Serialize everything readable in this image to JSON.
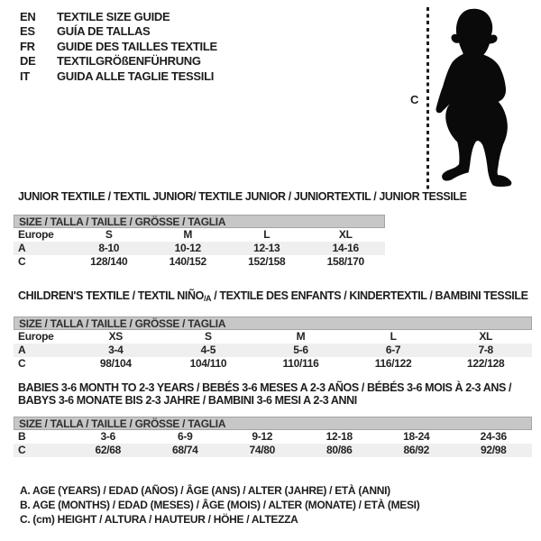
{
  "colors": {
    "page_bg": "#ffffff",
    "text": "#1d1d1d",
    "bar_bg": "#c7c7c7",
    "bar_border": "#a5a5a5",
    "shaded_row": "#efefef",
    "silhouette": "#0a0a0a"
  },
  "header": {
    "entries": [
      {
        "code": "EN",
        "text": "TEXTILE SIZE GUIDE"
      },
      {
        "code": "ES",
        "text": "GUÍA DE TALLAS"
      },
      {
        "code": "FR",
        "text": "GUIDE DES TAILLES TEXTILE"
      },
      {
        "code": "DE",
        "text": "TEXTILGRÖßENFÜHRUNG"
      },
      {
        "code": "IT",
        "text": "GUIDA ALLE TAGLIE TESSILI"
      }
    ]
  },
  "figure": {
    "label": "C",
    "icon": "baby-silhouette"
  },
  "sections": [
    {
      "title": "JUNIOR TEXTILE / TEXTIL JUNIOR/ TEXTILE JUNIOR / JUNIORTEXTIL / JUNIOR TESSILE",
      "size_header": "SIZE / TALLA / TAILLE / GRÖSSE / TAGLIA",
      "rows": [
        {
          "label": "Europe",
          "values": [
            "S",
            "M",
            "L",
            "XL"
          ],
          "shaded": false
        },
        {
          "label": "A",
          "values": [
            "8-10",
            "10-12",
            "12-13",
            "14-16"
          ],
          "shaded": true
        },
        {
          "label": "C",
          "values": [
            "128/140",
            "140/152",
            "152/158",
            "158/170"
          ],
          "shaded": false
        }
      ]
    },
    {
      "title_pre": "CHILDREN'S TEXTILE / TEXTIL NIÑO",
      "title_sub": "/A",
      "title_post": " / TEXTILE DES ENFANTS / KINDERTEXTIL / BAMBINI TESSILE",
      "size_header": "SIZE / TALLA / TAILLE / GRÖSSE / TAGLIA",
      "rows": [
        {
          "label": "Europe",
          "values": [
            "XS",
            "S",
            "M",
            "L",
            "XL"
          ],
          "shaded": false
        },
        {
          "label": "A",
          "values": [
            "3-4",
            "4-5",
            "5-6",
            "6-7",
            "7-8"
          ],
          "shaded": true
        },
        {
          "label": "C",
          "values": [
            "98/104",
            "104/110",
            "110/116",
            "116/122",
            "122/128"
          ],
          "shaded": false
        }
      ]
    },
    {
      "title_line1": "BABIES 3-6 MONTH TO 2-3 YEARS / BEBÉS 3-6 MESES A 2-3 AÑOS / BÉBÉS 3-6 MOIS À 2-3 ANS /",
      "title_line2": "BABYS 3-6 MONATE BIS 2-3 JAHRE / BAMBINI 3-6 MESI A 2-3 ANNI",
      "size_header": "SIZE / TALLA / TAILLE / GRÖSSE / TAGLIA",
      "rows": [
        {
          "label": "B",
          "values": [
            "3-6",
            "6-9",
            "9-12",
            "12-18",
            "18-24",
            "24-36"
          ],
          "shaded": false
        },
        {
          "label": "C",
          "values": [
            "62/68",
            "68/74",
            "74/80",
            "80/86",
            "86/92",
            "92/98"
          ],
          "shaded": true
        }
      ]
    }
  ],
  "legend": {
    "lines": [
      "A. AGE (YEARS) / EDAD (AÑOS) / ÂGE (ANS) / ALTER (JAHRE) / ETÀ (ANNI)",
      "B. AGE (MONTHS) / EDAD (MESES) / ÂGE (MOIS) / ALTER (MONATE) / ETÀ (MESI)",
      "C. (cm) HEIGHT / ALTURA / HAUTEUR / HÖHE / ALTEZZA"
    ]
  }
}
